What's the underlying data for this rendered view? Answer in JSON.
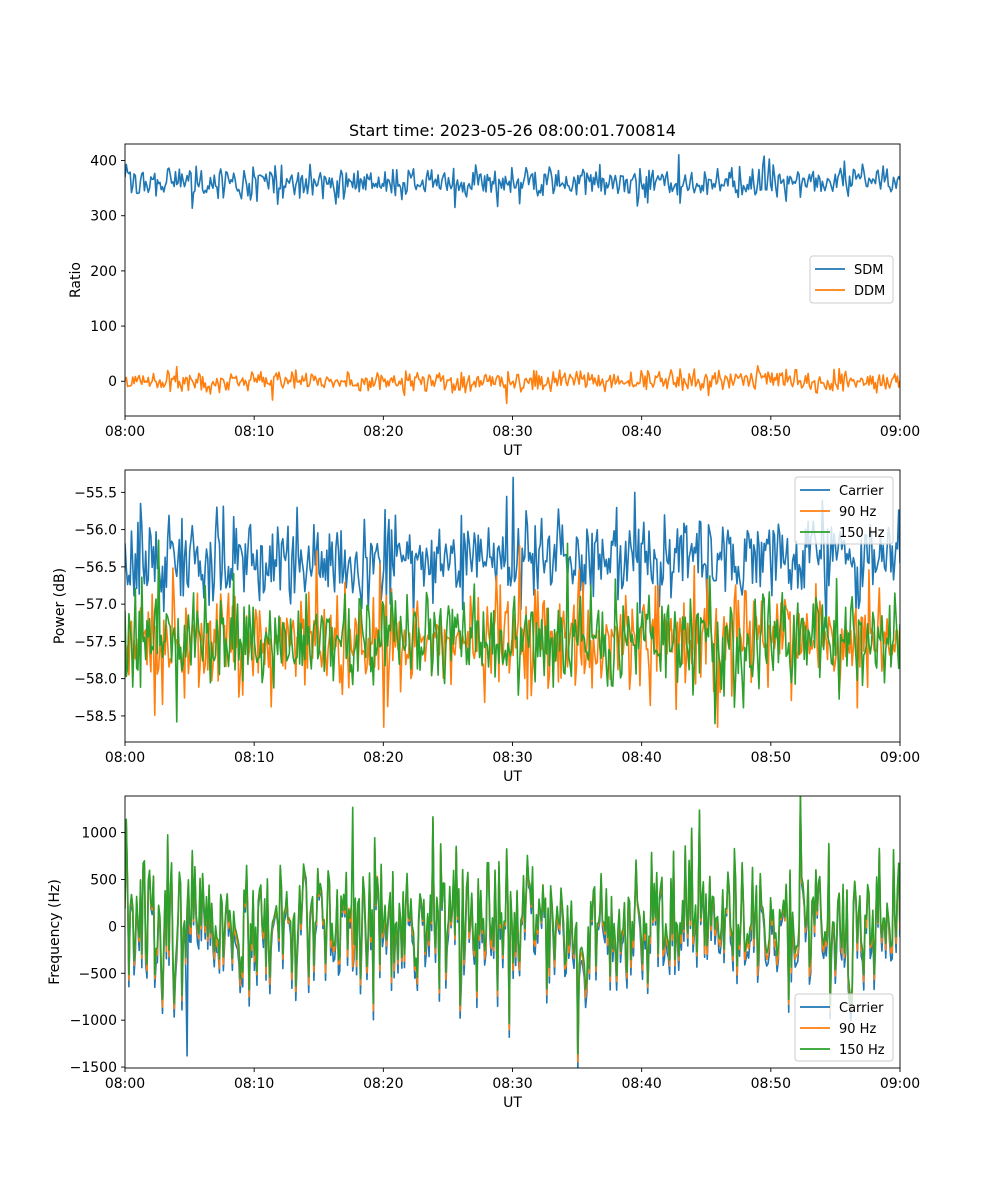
{
  "figure": {
    "title": "Start time: 2023-05-26 08:00:01.700814"
  },
  "chart_data": [
    {
      "type": "line",
      "title": "Start time: 2023-05-26 08:00:01.700814",
      "xlabel": "UT",
      "ylabel": "Ratio",
      "xlim": [
        "08:00",
        "09:00"
      ],
      "xticks": [
        "08:00",
        "08:10",
        "08:20",
        "08:30",
        "08:40",
        "08:50",
        "09:00"
      ],
      "ylim": [
        -63,
        430
      ],
      "yticks": [
        0,
        100,
        200,
        300,
        400
      ],
      "ytick_labels": [
        "0",
        "100",
        "200",
        "300",
        "400"
      ],
      "legend_position": "center-right",
      "legend": [
        "SDM",
        "DDM"
      ],
      "series": [
        {
          "name": "SDM",
          "color": "#1f77b4",
          "mean": 360,
          "amplitude": 15,
          "noise": "random",
          "samples": 600,
          "notable": [
            {
              "x": "08:25:30",
              "y": 315
            },
            {
              "x": "08:49:30",
              "y": 408
            }
          ]
        },
        {
          "name": "DDM",
          "color": "#ff7f0e",
          "mean": 0,
          "amplitude": 10,
          "noise": "random",
          "samples": 600,
          "notable": [
            {
              "x": "08:29:30",
              "y": -40
            },
            {
              "x": "08:49:00",
              "y": 28
            }
          ]
        }
      ]
    },
    {
      "type": "line",
      "title": "",
      "xlabel": "UT",
      "ylabel": "Power (dB)",
      "xlim": [
        "08:00",
        "09:00"
      ],
      "xticks": [
        "08:00",
        "08:10",
        "08:20",
        "08:30",
        "08:40",
        "08:50",
        "09:00"
      ],
      "ylim": [
        -58.85,
        -55.2
      ],
      "yticks": [
        -58.5,
        -58.0,
        -57.5,
        -57.0,
        -56.5,
        -56.0,
        -55.5
      ],
      "ytick_labels": [
        "−58.5",
        "−58.0",
        "−57.5",
        "−57.0",
        "−56.5",
        "−56.0",
        "−55.5"
      ],
      "legend_position": "upper-right",
      "legend": [
        "Carrier",
        "90 Hz",
        "150 Hz"
      ],
      "series": [
        {
          "name": "Carrier",
          "color": "#1f77b4",
          "mean": -56.4,
          "amplitude": 0.3,
          "noise": "random",
          "samples": 600,
          "notable": [
            {
              "x": "08:30:00",
              "y": -55.3
            },
            {
              "x": "08:39:30",
              "y": -55.5
            }
          ]
        },
        {
          "name": "90 Hz",
          "color": "#ff7f0e",
          "mean": -57.45,
          "amplitude": 0.35,
          "noise": "random",
          "samples": 600,
          "notable": [
            {
              "x": "08:20:00",
              "y": -58.65
            },
            {
              "x": "08:45:50",
              "y": -58.65
            }
          ]
        },
        {
          "name": "150 Hz",
          "color": "#2ca02c",
          "mean": -57.45,
          "amplitude": 0.33,
          "noise": "random",
          "samples": 600,
          "notable": [
            {
              "x": "08:04:00",
              "y": -58.58
            }
          ]
        }
      ]
    },
    {
      "type": "line",
      "title": "",
      "xlabel": "UT",
      "ylabel": "Frequency (Hz)",
      "xlim": [
        "08:00",
        "09:00"
      ],
      "xticks": [
        "08:00",
        "08:10",
        "08:20",
        "08:30",
        "08:40",
        "08:50",
        "09:00"
      ],
      "ylim": [
        -1510,
        1390
      ],
      "yticks": [
        -1500,
        -1000,
        -500,
        0,
        500,
        1000
      ],
      "ytick_labels": [
        "−1500",
        "−1000",
        "−500",
        "0",
        "500",
        "1000"
      ],
      "legend_position": "lower-right",
      "legend": [
        "Carrier",
        "90 Hz",
        "150 Hz"
      ],
      "series": [
        {
          "name": "Carrier",
          "color": "#1f77b4",
          "offset": -40,
          "amplitude": 380,
          "noise": "shared",
          "samples": 600,
          "notable": [
            {
              "x": "08:04:50",
              "y": -1380
            }
          ]
        },
        {
          "name": "90 Hz",
          "color": "#ff7f0e",
          "offset": 0,
          "amplitude": 380,
          "noise": "shared",
          "samples": 600
        },
        {
          "name": "150 Hz",
          "color": "#2ca02c",
          "offset": 30,
          "amplitude": 380,
          "noise": "shared",
          "samples": 600,
          "notable": [
            {
              "x": "08:17:40",
              "y": 1270
            }
          ]
        }
      ]
    }
  ]
}
